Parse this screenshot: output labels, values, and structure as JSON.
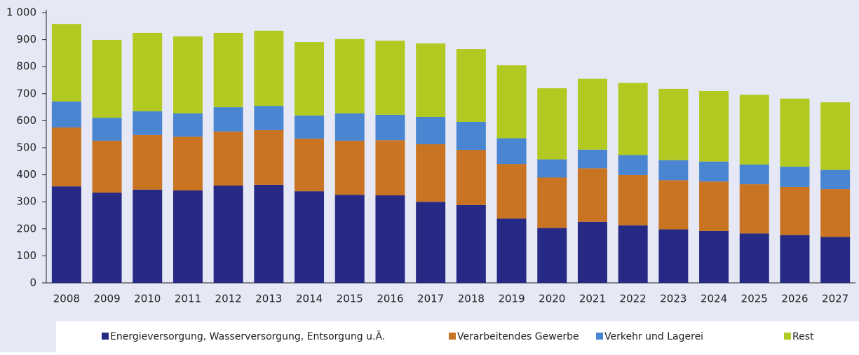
{
  "chart_data": {
    "type": "stacked_bar",
    "categories": [
      "2008",
      "2009",
      "2010",
      "2011",
      "2012",
      "2013",
      "2014",
      "2015",
      "2016",
      "2017",
      "2018",
      "2019",
      "2020",
      "2021",
      "2022",
      "2023",
      "2024",
      "2025",
      "2026",
      "2027"
    ],
    "series": [
      {
        "name": "Energieversorgung, Wasserversorgung, Entsorgung u.Ä.",
        "color": "#262a84",
        "values": [
          357,
          334,
          345,
          342,
          360,
          363,
          339,
          326,
          324,
          300,
          288,
          238,
          203,
          226,
          213,
          198,
          192,
          183,
          177,
          170
        ]
      },
      {
        "name": "Verarbeitendes Gewerbe",
        "color": "#c87422",
        "values": [
          218,
          192,
          202,
          199,
          200,
          202,
          195,
          200,
          204,
          213,
          204,
          202,
          187,
          198,
          186,
          182,
          183,
          182,
          178,
          177
        ]
      },
      {
        "name": "Verkehr und Lagerei",
        "color": "#4a85d2",
        "values": [
          96,
          85,
          88,
          86,
          90,
          90,
          85,
          101,
          94,
          101,
          104,
          95,
          67,
          69,
          74,
          74,
          74,
          73,
          75,
          71
        ]
      },
      {
        "name": "Rest",
        "color": "#b1c921",
        "values": [
          287,
          288,
          290,
          285,
          275,
          278,
          272,
          275,
          274,
          272,
          269,
          270,
          263,
          262,
          267,
          264,
          261,
          258,
          252,
          250
        ]
      }
    ],
    "ylim": [
      0,
      1000
    ],
    "yticks": [
      0,
      100,
      200,
      300,
      400,
      500,
      600,
      700,
      800,
      900,
      {
        "value": 1000,
        "label": "1 000"
      }
    ],
    "legend": "bottom"
  }
}
